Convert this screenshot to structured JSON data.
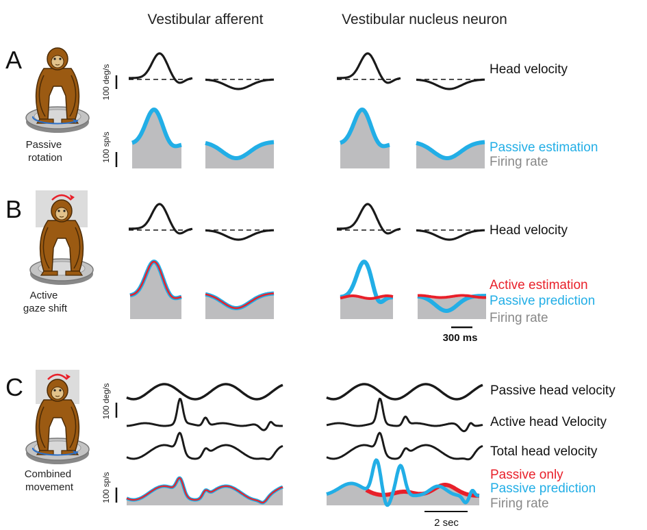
{
  "columns": {
    "afferent": "Vestibular afferent",
    "nucleus": "Vestibular nucleus neuron"
  },
  "panels": {
    "A": {
      "letter": "A",
      "condition": [
        "Passive",
        "rotation"
      ]
    },
    "B": {
      "letter": "B",
      "condition": [
        "Active",
        "gaze shift"
      ]
    },
    "C": {
      "letter": "C",
      "condition": [
        "Combined",
        "movement"
      ]
    }
  },
  "labels": {
    "head_velocity": "Head velocity",
    "passive_estimation": "Passive estimation",
    "firing_rate": "Firing rate",
    "active_estimation": "Active estimation",
    "passive_prediction": "Passive prediction",
    "passive_head_velocity": "Passive head velocity",
    "active_head_velocity": "Active head Velocity",
    "total_head_velocity": "Total head velocity",
    "passive_only": "Passive only"
  },
  "scale_bars": {
    "velocity": "100 deg/s",
    "rate": "100 sp/s",
    "time_short": "300 ms",
    "time_long": "2 sec"
  },
  "colors": {
    "trace": "#1a1a1a",
    "passive": "#22aee6",
    "active": "#e8202a",
    "fill": "#bdbdbf",
    "monkey": "#9b5a12",
    "platform": "#bcbcbc"
  },
  "icons": [
    "monkey-passive-icon",
    "monkey-active-icon",
    "monkey-combined-icon"
  ]
}
